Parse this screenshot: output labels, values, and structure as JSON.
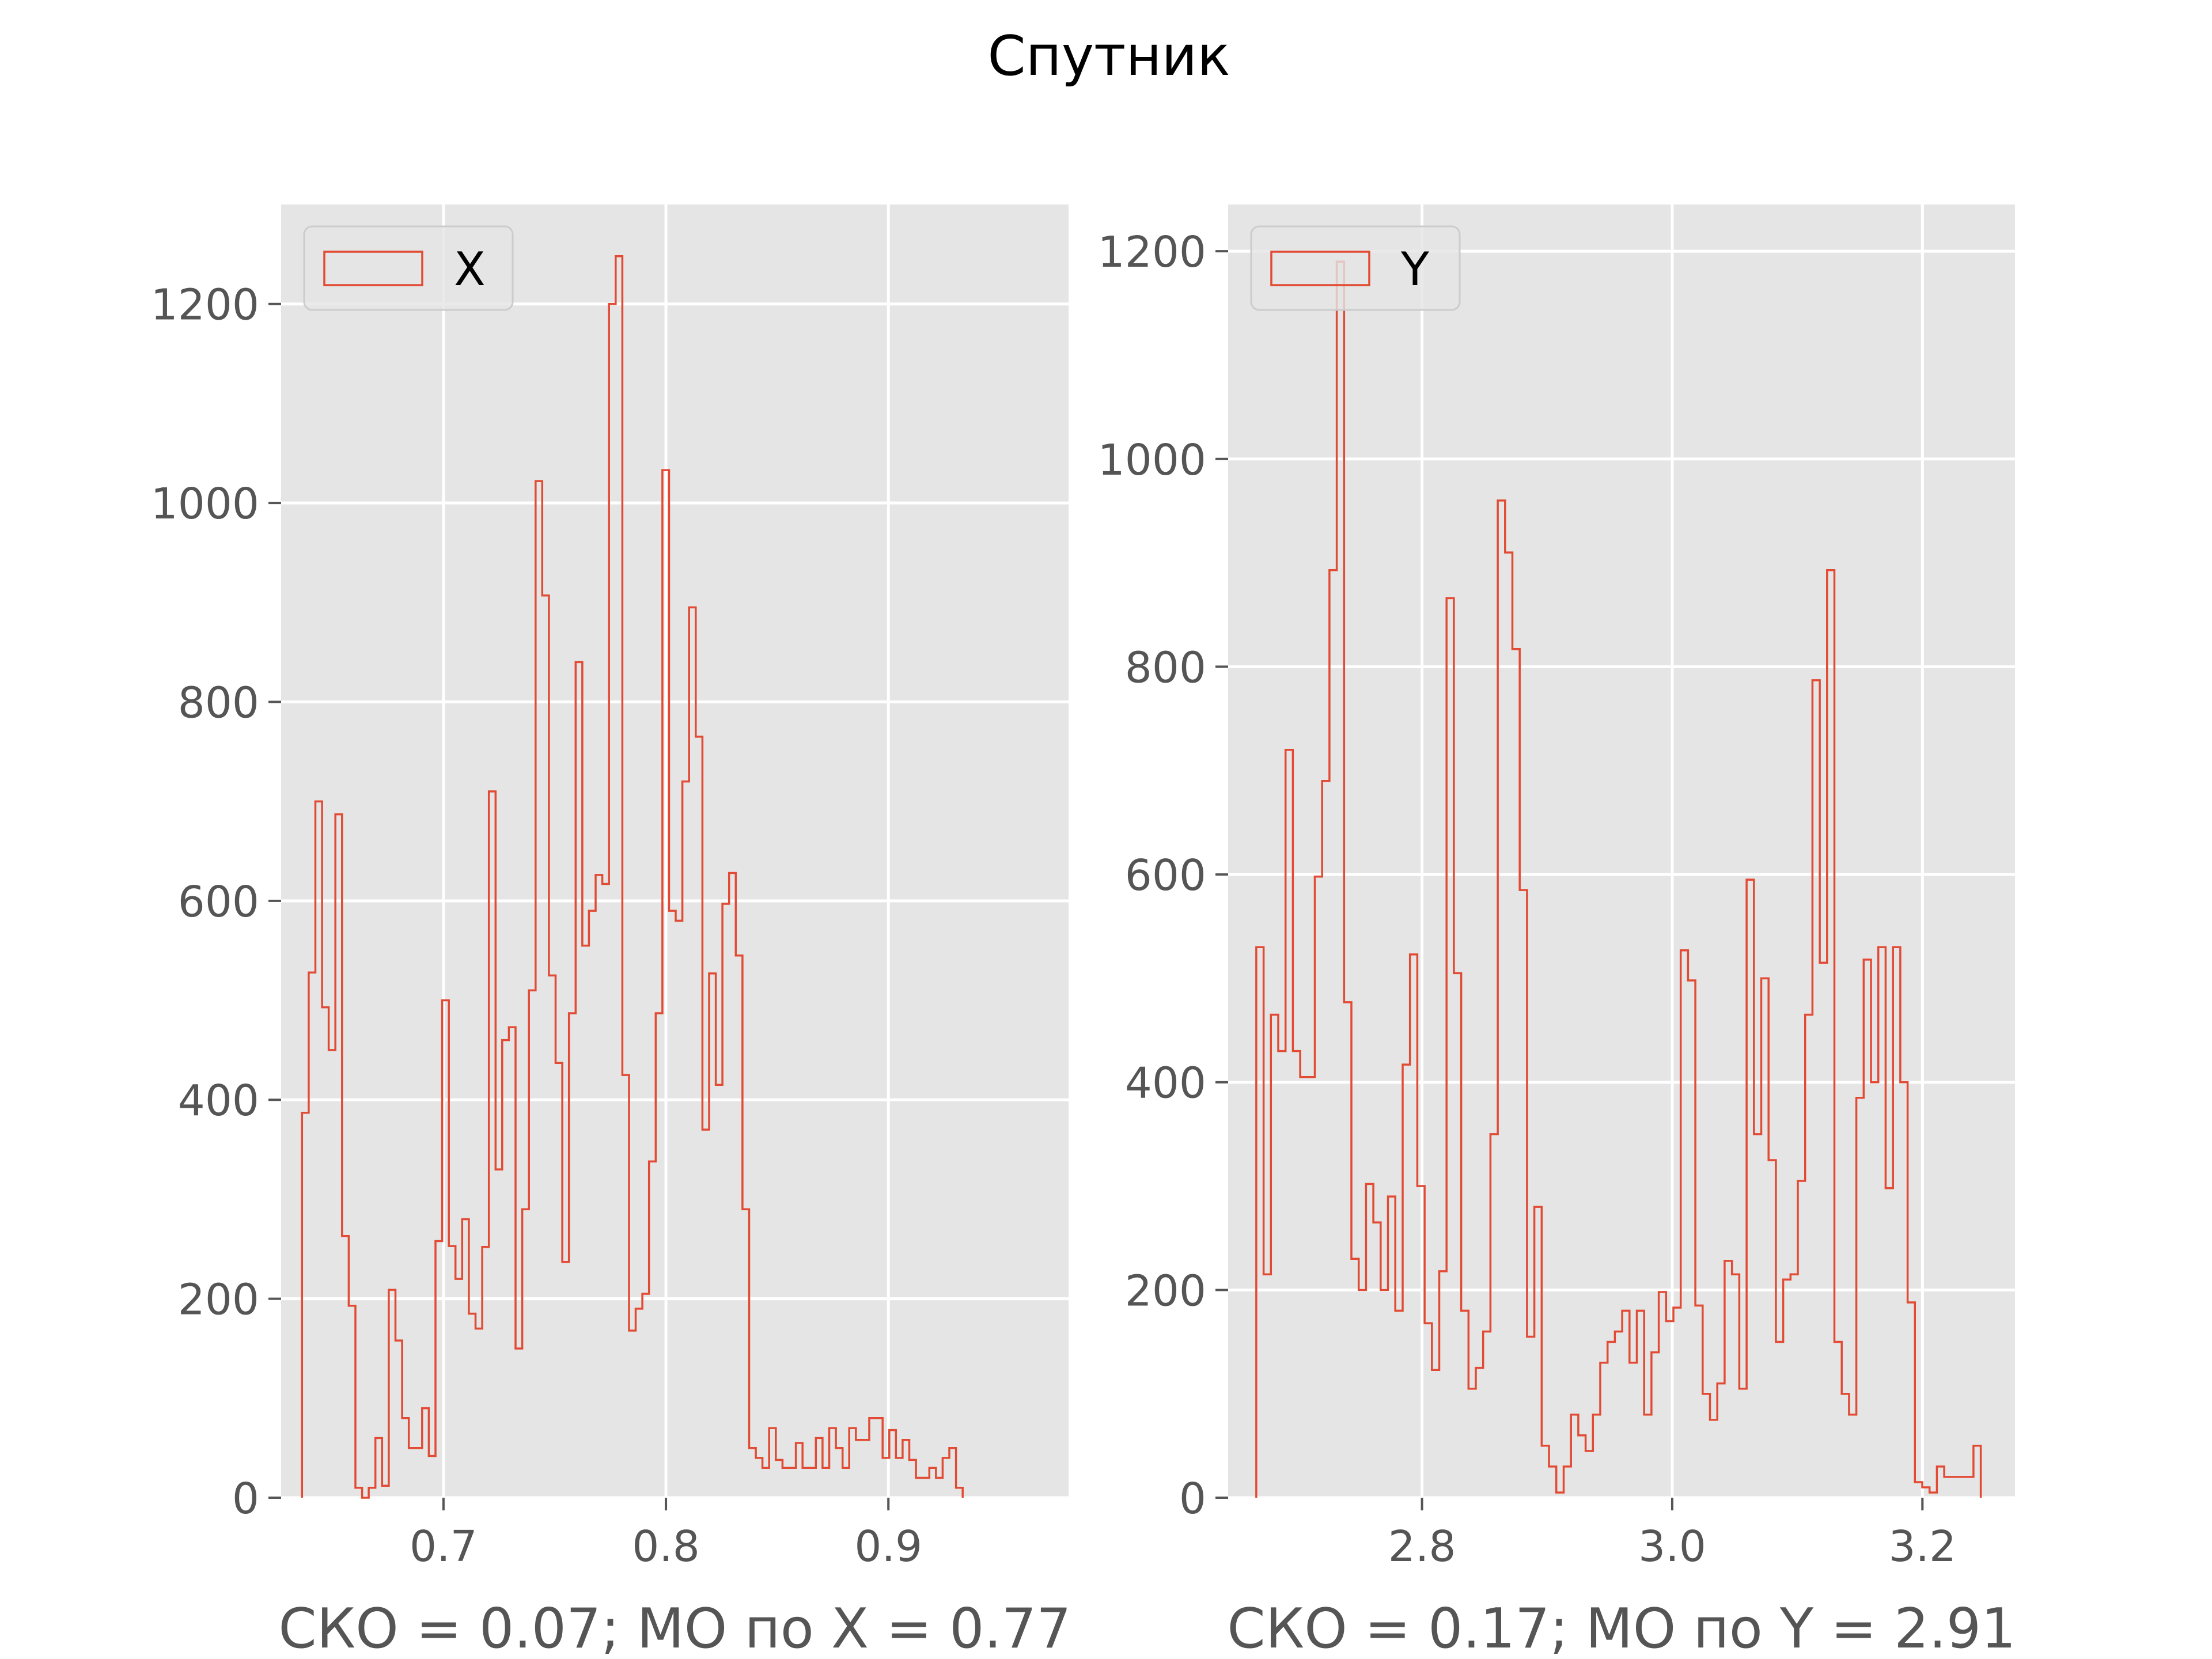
{
  "figure_title": "Спутник",
  "chart_data": [
    {
      "type": "histogram",
      "histtype": "step",
      "color": "#E24A33",
      "panel_background": "#E5E5E5",
      "grid": true,
      "legend": {
        "label": "X",
        "location": "top-left"
      },
      "xlabel": "СКО = 0.07; МО по X = 0.77",
      "ylabel": "",
      "xlim": [
        0.627,
        0.981
      ],
      "ylim": [
        0,
        1300
      ],
      "xticks": [
        0.7,
        0.8,
        0.9
      ],
      "xtick_labels": [
        "0.7",
        "0.8",
        "0.9"
      ],
      "yticks": [
        0,
        200,
        400,
        600,
        800,
        1000,
        1200
      ],
      "ytick_labels": [
        "0",
        "200",
        "400",
        "600",
        "800",
        "1000",
        "1200"
      ],
      "bin_start": 0.6364,
      "bin_width": 0.003,
      "counts": [
        387,
        528,
        700,
        493,
        450,
        687,
        263,
        193,
        10,
        0,
        10,
        60,
        12,
        209,
        158,
        80,
        50,
        50,
        90,
        42,
        258,
        500,
        253,
        220,
        280,
        185,
        170,
        252,
        710,
        330,
        460,
        473,
        150,
        290,
        510,
        1022,
        907,
        525,
        437,
        237,
        487,
        840,
        555,
        590,
        626,
        617,
        1200,
        1248,
        425,
        168,
        190,
        205,
        338,
        487,
        1033,
        590,
        580,
        720,
        895,
        765,
        370,
        527,
        415,
        597,
        628,
        545,
        290,
        50,
        40,
        30,
        70,
        38,
        30,
        30,
        55,
        30,
        30,
        60,
        30,
        70,
        50,
        30,
        70,
        58,
        58,
        80,
        80,
        40,
        68,
        40,
        58,
        38,
        20,
        20,
        30,
        20,
        40,
        50,
        10
      ]
    },
    {
      "type": "histogram",
      "histtype": "step",
      "color": "#E24A33",
      "panel_background": "#E5E5E5",
      "grid": true,
      "legend": {
        "label": "Y",
        "location": "top-left"
      },
      "xlabel": "СКО = 0.17; МО по Y = 2.91",
      "ylabel": "",
      "xlim": [
        2.645,
        3.274
      ],
      "ylim": [
        0,
        1245
      ],
      "xticks": [
        2.8,
        3.0,
        3.2
      ],
      "xtick_labels": [
        "2.8",
        "3.0",
        "3.2"
      ],
      "yticks": [
        0,
        200,
        400,
        600,
        800,
        1000,
        1200
      ],
      "ytick_labels": [
        "0",
        "200",
        "400",
        "600",
        "800",
        "1000",
        "1200"
      ],
      "bin_start": 2.6675,
      "bin_width": 0.00585,
      "counts": [
        530,
        215,
        465,
        430,
        720,
        430,
        405,
        405,
        598,
        690,
        893,
        1190,
        477,
        230,
        200,
        302,
        265,
        200,
        290,
        180,
        417,
        523,
        300,
        168,
        123,
        218,
        866,
        505,
        180,
        105,
        125,
        160,
        350,
        960,
        910,
        817,
        585,
        155,
        280,
        50,
        30,
        5,
        30,
        80,
        60,
        45,
        80,
        130,
        150,
        160,
        180,
        130,
        180,
        80,
        140,
        198,
        170,
        183,
        527,
        498,
        185,
        100,
        75,
        110,
        228,
        215,
        105,
        595,
        350,
        500,
        325,
        150,
        210,
        215,
        305,
        465,
        787,
        515,
        893,
        150,
        100,
        80,
        385,
        518,
        400,
        530,
        298,
        530,
        400,
        188,
        15,
        10,
        5,
        30,
        20,
        20,
        20,
        20,
        50
      ]
    }
  ]
}
